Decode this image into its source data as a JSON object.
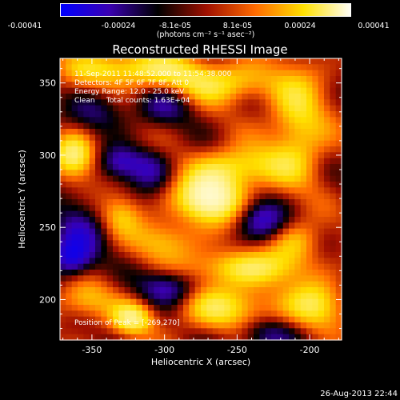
{
  "colorbar": {
    "ticks": [
      "-0.00041",
      "-0.00024",
      "-8.1e-05",
      "8.1e-05",
      "0.00024",
      "0.00041"
    ],
    "tick_values": [
      -0.00041,
      -0.00024,
      -8.1e-05,
      8.1e-05,
      0.00024,
      0.00041
    ],
    "range": [
      -0.00041,
      0.00041
    ],
    "unit_label": "(photons cm⁻² s⁻¹ asec⁻²)",
    "colormap": [
      "#0000ff",
      "#3a00b0",
      "#000000",
      "#a01000",
      "#ff6a00",
      "#ffe000",
      "#ffffff"
    ]
  },
  "chart_data": {
    "type": "heatmap",
    "title": "Reconstructed RHESSI Image",
    "xlabel": "Heliocentric X (arcsec)",
    "ylabel": "Heliocentric Y (arcsec)",
    "xlim": [
      -372,
      -178
    ],
    "ylim": [
      172,
      367
    ],
    "xticks": [
      -350,
      -300,
      -250,
      -200
    ],
    "yticks": [
      200,
      250,
      300,
      350
    ],
    "annotations": [
      "11-Sep-2011 11:48:52.000 to 11:54:38.000",
      "Detectors: 4F 5F 6F 7F 8F, Att 0",
      "Energy Range: 12.0 - 25.0 keV",
      "Clean     Total counts: 1.63E+04"
    ],
    "peak_label": "Position of Peak = [-269,270]",
    "peak": [
      -269,
      270
    ],
    "sources": [
      {
        "x": -269,
        "y": 270,
        "sx": 16,
        "sy": 12,
        "amp": 1.0
      },
      {
        "x": -248,
        "y": 292,
        "sx": 22,
        "sy": 10,
        "amp": 0.55
      },
      {
        "x": -326,
        "y": 360,
        "sx": 30,
        "sy": 9,
        "amp": 0.6
      },
      {
        "x": -265,
        "y": 350,
        "sx": 30,
        "sy": 10,
        "amp": 0.55
      },
      {
        "x": -208,
        "y": 320,
        "sx": 14,
        "sy": 28,
        "amp": 0.55
      },
      {
        "x": -362,
        "y": 300,
        "sx": 10,
        "sy": 11,
        "amp": 0.7
      },
      {
        "x": -244,
        "y": 222,
        "sx": 28,
        "sy": 9,
        "amp": 0.6
      },
      {
        "x": -258,
        "y": 195,
        "sx": 26,
        "sy": 11,
        "amp": 0.55
      },
      {
        "x": -196,
        "y": 196,
        "sx": 14,
        "sy": 12,
        "amp": 0.55
      },
      {
        "x": -322,
        "y": 187,
        "sx": 10,
        "sy": 8,
        "amp": 0.65
      },
      {
        "x": -356,
        "y": 200,
        "sx": 14,
        "sy": 10,
        "amp": 0.45
      },
      {
        "x": -330,
        "y": 258,
        "sx": 10,
        "sy": 10,
        "amp": 0.4
      },
      {
        "x": -300,
        "y": 240,
        "sx": 16,
        "sy": 10,
        "amp": 0.4
      },
      {
        "x": -210,
        "y": 240,
        "sx": 12,
        "sy": 10,
        "amp": 0.4
      },
      {
        "x": -330,
        "y": 295,
        "sx": 10,
        "sy": 8,
        "amp": -0.5
      },
      {
        "x": -360,
        "y": 240,
        "sx": 12,
        "sy": 18,
        "amp": -0.55
      },
      {
        "x": -310,
        "y": 290,
        "sx": 10,
        "sy": 10,
        "amp": -0.45
      },
      {
        "x": -233,
        "y": 255,
        "sx": 12,
        "sy": 10,
        "amp": -0.6
      },
      {
        "x": -297,
        "y": 208,
        "sx": 14,
        "sy": 9,
        "amp": -0.6
      },
      {
        "x": -230,
        "y": 175,
        "sx": 14,
        "sy": 8,
        "amp": -0.45
      },
      {
        "x": -365,
        "y": 230,
        "sx": 8,
        "sy": 8,
        "amp": -0.5
      },
      {
        "x": -300,
        "y": 335,
        "sx": 14,
        "sy": 10,
        "amp": -0.4
      },
      {
        "x": -345,
        "y": 330,
        "sx": 14,
        "sy": 10,
        "amp": -0.35
      }
    ]
  },
  "footer": {
    "date": "26-Aug-2013 22:44"
  }
}
